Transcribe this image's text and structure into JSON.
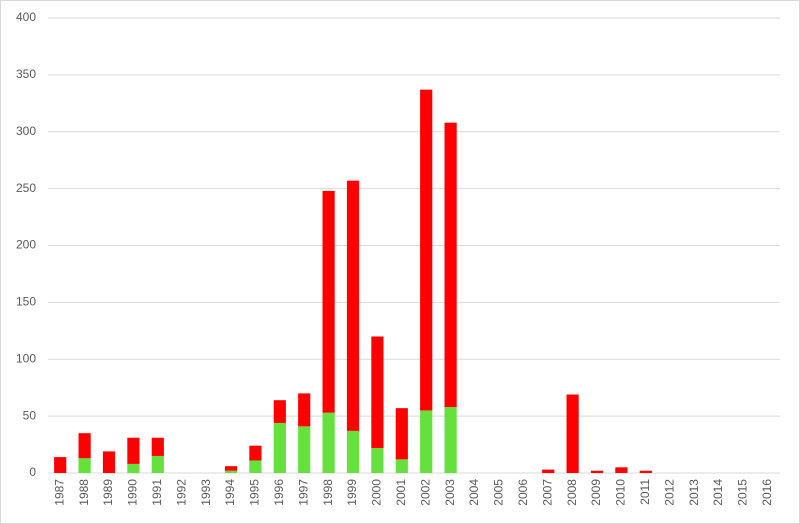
{
  "chart_data": {
    "type": "stacked_bar",
    "categories": [
      "1987",
      "1988",
      "1989",
      "1990",
      "1991",
      "1992",
      "1993",
      "1994",
      "1995",
      "1996",
      "1997",
      "1998",
      "1999",
      "2000",
      "2001",
      "2002",
      "2003",
      "2004",
      "2005",
      "2006",
      "2007",
      "2008",
      "2009",
      "2010",
      "2011",
      "2012",
      "2013",
      "2014",
      "2015",
      "2016"
    ],
    "series": [
      {
        "color": "#66e03c",
        "values": [
          0,
          13,
          0,
          8,
          15,
          0,
          0,
          2,
          11,
          44,
          41,
          53,
          37,
          22,
          12,
          55,
          58,
          0,
          0,
          0,
          0,
          0,
          0,
          0,
          0,
          0,
          0,
          0,
          0,
          0
        ]
      },
      {
        "color": "#ff0000",
        "values": [
          14,
          22,
          19,
          23,
          16,
          0,
          0,
          4,
          13,
          20,
          29,
          195,
          220,
          98,
          45,
          282,
          250,
          0,
          0,
          0,
          3,
          69,
          2,
          5,
          2,
          0,
          0,
          0,
          0,
          0
        ]
      }
    ],
    "ylim": [
      0,
      400
    ],
    "yticks": [
      0,
      50,
      100,
      150,
      200,
      250,
      300,
      350,
      400
    ],
    "grid": true
  }
}
